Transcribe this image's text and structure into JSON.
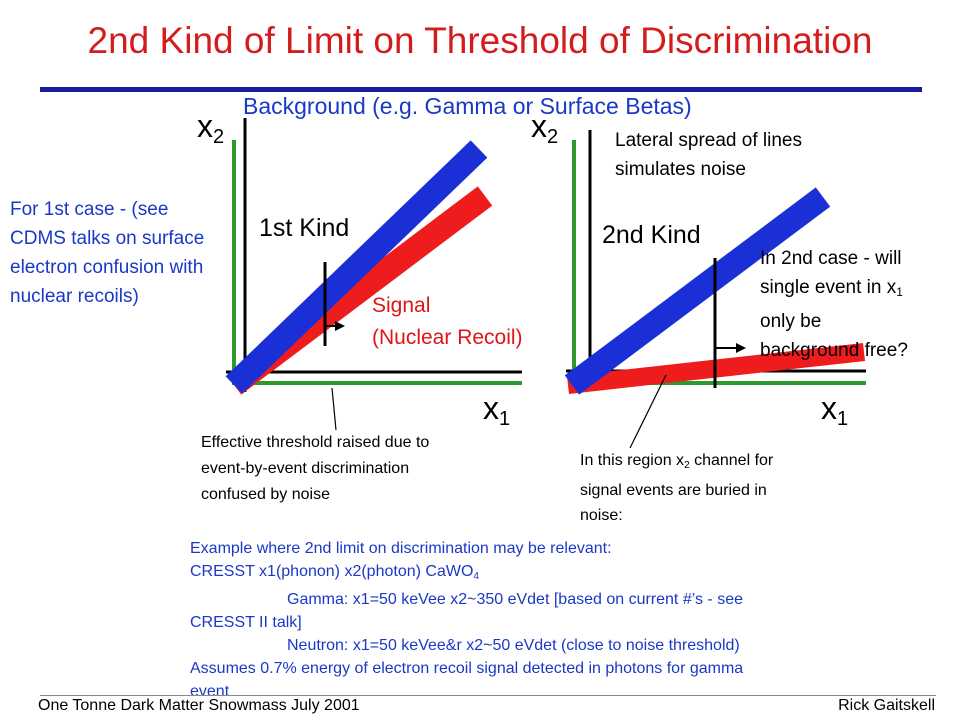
{
  "slide": {
    "title": "2nd Kind of Limit on Threshold of Discrimination",
    "background_label": "Background (e.g. Gamma or Surface Betas)",
    "left_note": "For 1st case - (see CDMS talks on surface electron confusion with nuclear recoils)",
    "colors": {
      "title": "#d51c1c",
      "note": "#1a38c8",
      "axis": "#2e9a2e",
      "background_line": "#1a2fd6",
      "signal_line": "#ee1c1c"
    }
  },
  "plot1": {
    "y_axis": "x",
    "y_sub": "2",
    "x_axis": "x",
    "x_sub": "1",
    "kind_label": "1st Kind",
    "signal_line1": "Signal",
    "signal_line2": "(Nuclear Recoil)"
  },
  "plot2": {
    "y_axis": "x",
    "y_sub": "2",
    "x_axis": "x",
    "x_sub": "1",
    "kind_label": "2nd Kind",
    "lateral_line1": "Lateral spread of lines",
    "lateral_line2": "simulates noise",
    "q_line1_pre": "In 2nd case - will",
    "q_line2_pre": "single event in x",
    "q_line2_sub": "1",
    "q_line3": "only be",
    "q_line4": "background free?"
  },
  "annotations": {
    "effective_line1": "Effective threshold raised due to",
    "effective_line2": "event-by-event discrimination",
    "effective_line3": "confused by noise",
    "region_line1_pre": "In this region x",
    "region_line1_sub": "2",
    "region_line1_post": " channel for",
    "region_line2": "signal events are buried in",
    "region_line3": "noise:"
  },
  "example": {
    "line1": "Example where 2nd limit on discrimination may be relevant:",
    "line2_pre": "CRESST  x1(phonon) x2(photon)  CaWO",
    "line2_sub": "4",
    "line3": "Gamma: x1=50 keVee  x2~350 eVdet [based on current #’s - see",
    "line4": "CRESST II talk]",
    "line5": "Neutron: x1=50 keVee&r  x2~50 eVdet (close to noise threshold)",
    "line6": "Assumes 0.7% energy of electron recoil signal detected in photons for gamma",
    "line7": "event"
  },
  "footer": {
    "left": "One Tonne Dark Matter Snowmass July 2001",
    "right": "Rick Gaitskell"
  }
}
